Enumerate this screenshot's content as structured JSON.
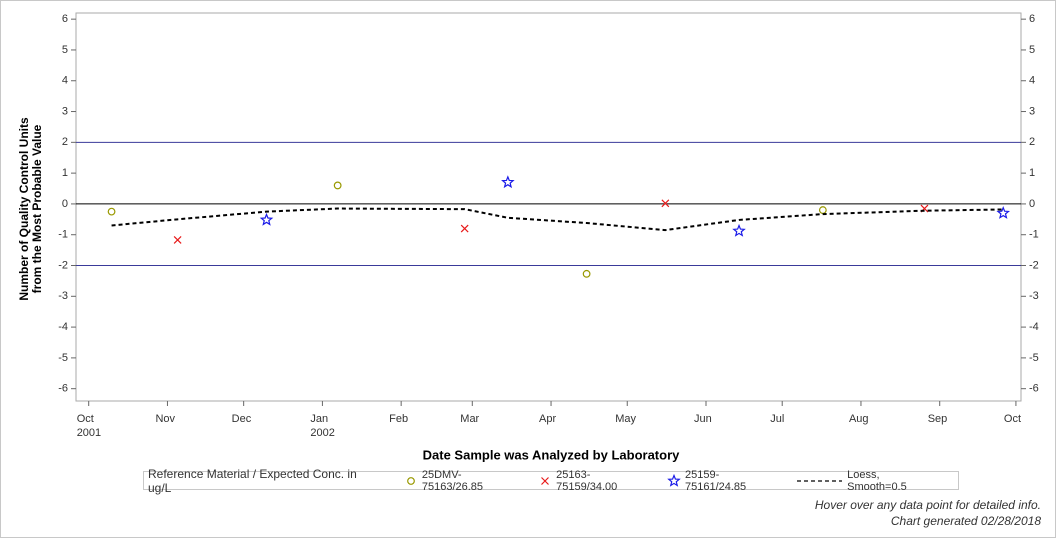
{
  "chart_data": {
    "type": "scatter",
    "xlabel": "Date Sample was Analyzed by Laboratory",
    "ylabel": [
      "Number of Quality Control Units",
      "from the Most Probable Value"
    ],
    "xlim": [
      "2001-09-26",
      "2002-10-03"
    ],
    "xticks": [
      {
        "value": "2001-10-01",
        "label": "Oct\n2001"
      },
      {
        "value": "2001-11-01",
        "label": "Nov"
      },
      {
        "value": "2001-12-01",
        "label": "Dec"
      },
      {
        "value": "2002-01-01",
        "label": "Jan\n2002"
      },
      {
        "value": "2002-02-01",
        "label": "Feb"
      },
      {
        "value": "2002-03-01",
        "label": "Mar"
      },
      {
        "value": "2002-04-01",
        "label": "Apr"
      },
      {
        "value": "2002-05-01",
        "label": "May"
      },
      {
        "value": "2002-06-01",
        "label": "Jun"
      },
      {
        "value": "2002-07-01",
        "label": "Jul"
      },
      {
        "value": "2002-08-01",
        "label": "Aug"
      },
      {
        "value": "2002-09-01",
        "label": "Sep"
      },
      {
        "value": "2002-10-01",
        "label": "Oct"
      }
    ],
    "ylim": [
      -6.4,
      6.2
    ],
    "yticks": [
      -6,
      -5,
      -4,
      -3,
      -2,
      -1,
      0,
      1,
      2,
      3,
      4,
      5,
      6
    ],
    "reference_lines": [
      {
        "value": 2,
        "color": "#3a3a9a"
      },
      {
        "value": 0,
        "color": "#000000"
      },
      {
        "value": -2,
        "color": "#3a3a9a"
      }
    ],
    "legend_title": "Reference Material / Expected Conc. in ug/L",
    "series": [
      {
        "name": "25DMV-75163/26.85",
        "marker": "circle",
        "color": "#999900",
        "x": [
          "2001-10-10",
          "2002-01-07",
          "2002-04-15",
          "2002-07-17"
        ],
        "values": [
          -0.25,
          0.6,
          -2.27,
          -0.2
        ]
      },
      {
        "name": "25163-75159/34.00",
        "marker": "x",
        "color": "#e81a1a",
        "x": [
          "2001-11-05",
          "2002-02-26",
          "2002-05-16",
          "2002-08-26"
        ],
        "values": [
          -1.17,
          -0.8,
          0.02,
          -0.15
        ]
      },
      {
        "name": "25159-75161/24.85",
        "marker": "star",
        "color": "#1a1ae8",
        "x": [
          "2001-12-10",
          "2002-03-15",
          "2002-06-14",
          "2002-09-26"
        ],
        "values": [
          -0.52,
          0.7,
          -0.88,
          -0.3
        ]
      },
      {
        "name": "Loess, Smooth=0.5",
        "marker": "dashed-line",
        "color": "#000000",
        "x": [
          "2001-10-10",
          "2001-11-05",
          "2001-12-10",
          "2002-01-07",
          "2002-02-26",
          "2002-03-15",
          "2002-04-15",
          "2002-05-16",
          "2002-06-14",
          "2002-07-17",
          "2002-08-26",
          "2002-09-26"
        ],
        "values": [
          -0.7,
          -0.5,
          -0.25,
          -0.15,
          -0.17,
          -0.45,
          -0.62,
          -0.85,
          -0.52,
          -0.33,
          -0.22,
          -0.18
        ]
      }
    ],
    "footnotes": [
      "Hover over any data point for detailed info.",
      "Chart generated 02/28/2018"
    ]
  }
}
